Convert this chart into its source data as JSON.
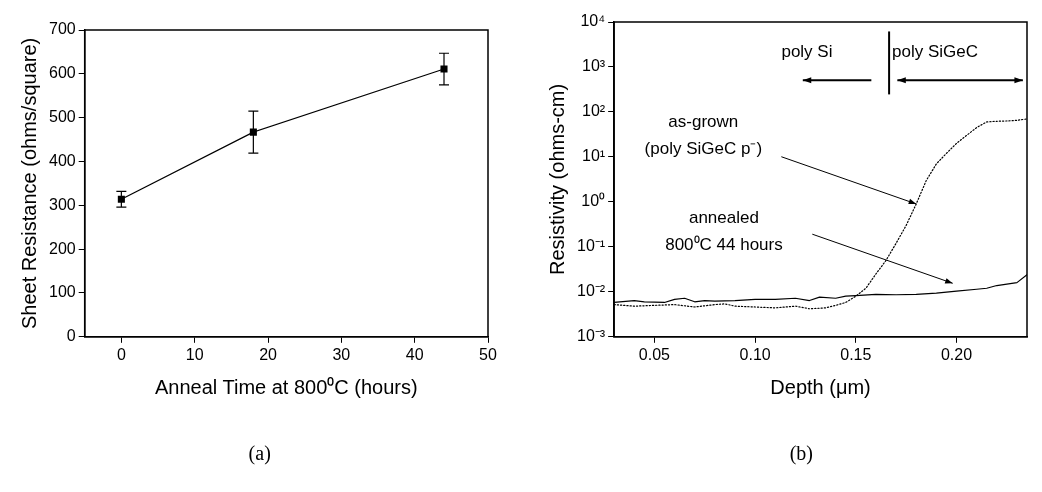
{
  "chart_data": [
    {
      "type": "line",
      "xlabel": "Anneal Time at 800⁰C (hours)",
      "ylabel": "Sheet Resistance (ohms/square)",
      "x": [
        0,
        18,
        44
      ],
      "series": [
        {
          "color": "#000000",
          "values": [
            314,
            467,
            611
          ],
          "errors": [
            [
              296,
              332
            ],
            [
              419,
              515
            ],
            [
              575,
              647
            ]
          ]
        }
      ],
      "xlim": [
        -5,
        50
      ],
      "xticks": [
        0,
        10,
        20,
        30,
        40,
        50
      ],
      "ylim": [
        0,
        700
      ],
      "yticks": [
        0,
        100,
        200,
        300,
        400,
        500,
        600,
        700
      ],
      "marker": "square",
      "line_style": "solid",
      "grid": false,
      "legend": false,
      "annotations": [
        "(a)"
      ]
    },
    {
      "type": "line",
      "xlabel": "Depth (μm)",
      "ylabel": "Resistivity (ohms-cm)",
      "series": [
        {
          "color": "#000000",
          "line_style": "solid",
          "x": [
            0.03,
            0.04,
            0.045,
            0.055,
            0.06,
            0.065,
            0.07,
            0.075,
            0.08,
            0.09,
            0.1,
            0.11,
            0.12,
            0.127,
            0.132,
            0.14,
            0.145,
            0.15,
            0.16,
            0.17,
            0.18,
            0.19,
            0.2,
            0.21,
            0.215,
            0.22,
            0.23,
            0.235
          ],
          "values": [
            0.0058,
            0.0064,
            0.006,
            0.0058,
            0.0068,
            0.0072,
            0.006,
            0.0064,
            0.0062,
            0.0064,
            0.0068,
            0.0068,
            0.0072,
            0.0064,
            0.0076,
            0.0072,
            0.008,
            0.0082,
            0.0088,
            0.0086,
            0.0088,
            0.0094,
            0.0104,
            0.0114,
            0.012,
            0.0138,
            0.016,
            0.024
          ]
        },
        {
          "color": "#000000",
          "line_style": "dotted",
          "x": [
            0.03,
            0.04,
            0.05,
            0.06,
            0.07,
            0.08,
            0.085,
            0.09,
            0.1,
            0.11,
            0.12,
            0.127,
            0.135,
            0.14,
            0.145,
            0.15,
            0.155,
            0.16,
            0.165,
            0.17,
            0.175,
            0.18,
            0.185,
            0.19,
            0.195,
            0.2,
            0.205,
            0.21,
            0.215,
            0.22,
            0.225,
            0.23,
            0.235
          ],
          "values": [
            0.0052,
            0.0048,
            0.005,
            0.0052,
            0.0046,
            0.0052,
            0.0054,
            0.0048,
            0.0046,
            0.0044,
            0.0048,
            0.0042,
            0.0044,
            0.005,
            0.0058,
            0.008,
            0.012,
            0.025,
            0.05,
            0.12,
            0.3,
            0.9,
            3,
            7,
            12,
            20,
            30,
            45,
            60,
            62,
            63,
            65,
            70
          ]
        }
      ],
      "xlim": [
        0.03,
        0.235
      ],
      "xticks": [
        {
          "value": 0.05,
          "label": "0.05"
        },
        {
          "value": 0.1,
          "label": "0.10"
        },
        {
          "value": 0.15,
          "label": "0.15"
        },
        {
          "value": 0.2,
          "label": "0.20"
        }
      ],
      "ylim": [
        0.001,
        10000
      ],
      "yticks": [
        {
          "value": 0.001,
          "label": "10⁻³"
        },
        {
          "value": 0.01,
          "label": "10⁻²"
        },
        {
          "value": 0.1,
          "label": "10⁻¹"
        },
        {
          "value": 1,
          "label": "10⁰"
        },
        {
          "value": 10,
          "label": "10¹"
        },
        {
          "value": 100,
          "label": "10²"
        },
        {
          "value": 1000,
          "label": "10³"
        },
        {
          "value": 10000,
          "label": "10⁴"
        }
      ],
      "log": "y",
      "marker": "none",
      "grid": false,
      "legend": false,
      "annotations": [
        "poly Si",
        "poly SiGeC",
        {
          "text": "as-grown\n(poly SiGeC p⁻)",
          "x": 0.18,
          "y": 0.9
        },
        "annealed\n800⁰C 44 hours",
        "(b)"
      ]
    }
  ]
}
